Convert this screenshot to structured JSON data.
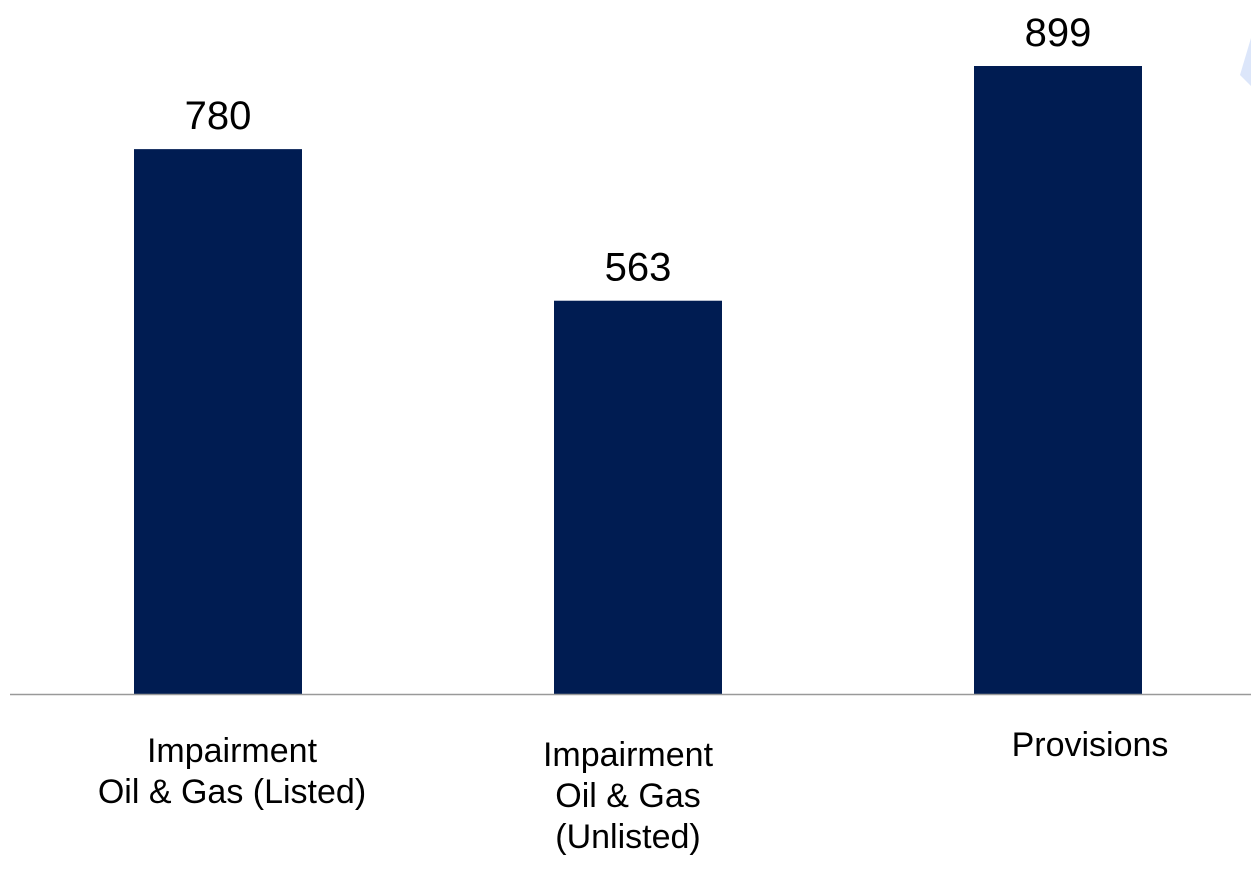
{
  "chart_data": {
    "type": "bar",
    "categories": [
      [
        "Impairment",
        "Oil & Gas (Listed)"
      ],
      [
        "Impairment",
        "Oil & Gas",
        "(Unlisted)"
      ],
      [
        "Provisions"
      ]
    ],
    "values": [
      780,
      563,
      899
    ],
    "data_labels": [
      "780",
      "563",
      "899"
    ],
    "title": "",
    "xlabel": "",
    "ylabel": "",
    "ylim": [
      0,
      899
    ],
    "grid": false,
    "legend": "none"
  },
  "colors": {
    "bar": "#001C52",
    "axis": "#999999",
    "corner_accent": "#DCE6FA"
  }
}
